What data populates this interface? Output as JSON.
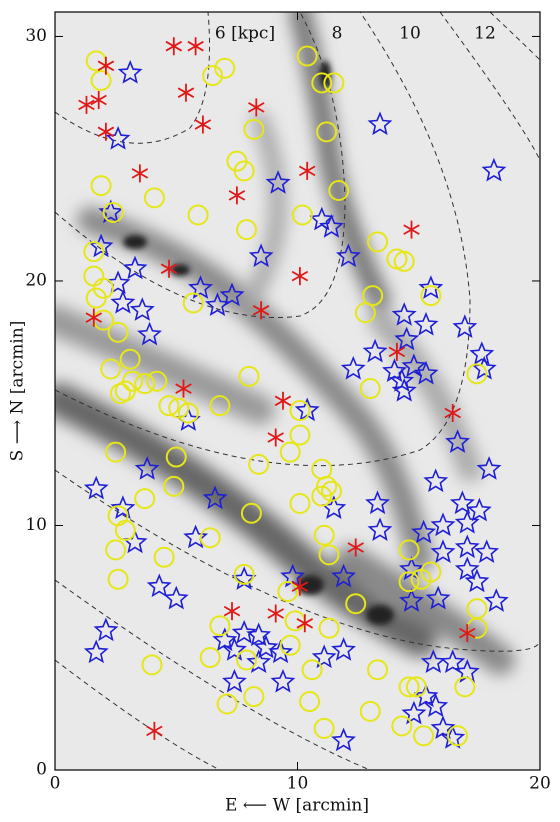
{
  "chart_data": {
    "type": "scatter",
    "xlabel": "E ⟵ W [arcmin]",
    "ylabel": "S ⟶ N [arcmin]",
    "annotations": [
      "6 [kpc]",
      "8",
      "10",
      "12"
    ],
    "xlim": [
      0,
      20
    ],
    "ylim": [
      0,
      31
    ],
    "xticks": [
      0,
      10,
      20
    ],
    "yticks": [
      0,
      10,
      20,
      30
    ],
    "series": [
      {
        "marker": "star",
        "color": "#1f1fd6",
        "x": [
          3.1,
          2.6,
          13.4,
          9.2,
          18.1,
          2.3,
          11.0,
          11.4,
          1.9,
          8.5,
          12.1,
          3.3,
          2.6,
          6.0,
          7.3,
          6.7,
          2.8,
          3.6,
          3.9,
          15.5,
          14.4,
          15.3,
          16.9,
          14.5,
          17.6,
          13.2,
          12.3,
          14.0,
          14.8,
          15.3,
          14.3,
          14.4,
          17.7,
          10.4,
          5.5,
          16.6,
          3.8,
          1.7,
          6.6,
          13.3,
          15.7,
          17.9,
          16.8,
          17.5,
          16.0,
          17.0,
          15.2,
          13.4,
          2.8,
          3.3,
          5.8,
          11.5,
          16.0,
          17.0,
          17.8,
          17.0,
          14.7,
          17.4,
          11.9,
          7.8,
          9.8,
          4.3,
          5.0,
          14.7,
          15.8,
          18.2,
          2.1,
          1.7,
          7.8,
          8.4,
          7.0,
          8.7,
          7.4,
          9.3,
          8.4,
          11.1,
          11.9,
          15.6,
          16.4,
          17.0,
          7.4,
          9.4,
          15.3,
          15.7,
          14.8,
          16.0,
          11.9,
          16.4
        ],
        "y": [
          28.5,
          25.8,
          26.4,
          24.0,
          24.5,
          22.8,
          22.5,
          22.2,
          21.4,
          21.0,
          21.0,
          20.5,
          19.9,
          19.7,
          19.4,
          19.0,
          19.1,
          18.8,
          17.8,
          19.7,
          18.6,
          18.2,
          18.1,
          17.6,
          17.0,
          17.1,
          16.4,
          16.3,
          16.5,
          16.2,
          15.9,
          15.5,
          16.4,
          14.7,
          14.3,
          13.4,
          12.3,
          11.5,
          11.1,
          10.9,
          11.8,
          12.3,
          10.9,
          10.6,
          10.0,
          10.1,
          9.7,
          9.8,
          10.7,
          9.3,
          9.5,
          10.7,
          8.9,
          9.1,
          8.9,
          8.2,
          8.2,
          7.7,
          7.9,
          7.8,
          7.9,
          7.5,
          7.0,
          6.9,
          7.0,
          6.9,
          5.7,
          4.8,
          5.6,
          5.5,
          5.3,
          5.0,
          4.9,
          4.8,
          4.4,
          4.6,
          4.9,
          4.4,
          4.4,
          4.0,
          3.6,
          3.6,
          3.0,
          2.6,
          2.3,
          1.7,
          1.2,
          1.3
        ]
      },
      {
        "marker": "circle",
        "color": "#e6e619",
        "x": [
          1.7,
          1.9,
          6.5,
          7.0,
          10.4,
          11.0,
          11.5,
          11.2,
          8.2,
          7.5,
          7.8,
          1.9,
          4.1,
          2.4,
          5.9,
          10.2,
          11.7,
          7.9,
          13.3,
          14.1,
          14.4,
          1.6,
          1.6,
          2.0,
          1.7,
          2.0,
          2.6,
          5.7,
          13.1,
          12.8,
          15.5,
          3.1,
          2.3,
          3.2,
          2.9,
          3.7,
          2.7,
          4.2,
          4.7,
          5.1,
          5.5,
          6.8,
          8.0,
          13.0,
          17.4,
          10.1,
          10.1,
          9.7,
          2.5,
          5.0,
          8.4,
          11.0,
          11.2,
          11.4,
          11.0,
          10.1,
          4.9,
          3.7,
          8.1,
          2.6,
          2.9,
          11.1,
          6.4,
          2.5,
          4.5,
          11.3,
          14.6,
          2.6,
          7.8,
          9.6,
          14.6,
          15.1,
          15.5,
          12.4,
          17.4,
          9.9,
          11.3,
          17.4,
          6.8,
          9.7,
          6.4,
          7.9,
          10.6,
          13.3,
          4.0,
          8.2,
          7.1,
          10.5,
          14.6,
          14.9,
          16.9,
          11.1,
          13.0,
          14.3,
          15.2,
          16.6
        ],
        "y": [
          29.0,
          28.2,
          28.4,
          28.7,
          29.2,
          28.1,
          28.1,
          26.1,
          26.2,
          24.9,
          24.5,
          23.9,
          23.4,
          22.8,
          22.7,
          22.7,
          23.7,
          22.1,
          21.6,
          20.9,
          20.8,
          21.2,
          20.2,
          19.7,
          19.3,
          18.4,
          17.9,
          19.1,
          19.4,
          18.7,
          19.4,
          16.8,
          16.4,
          15.9,
          15.5,
          15.8,
          15.4,
          15.9,
          14.9,
          14.8,
          14.6,
          14.9,
          16.1,
          15.6,
          16.2,
          14.7,
          13.7,
          13.0,
          13.0,
          12.8,
          12.5,
          12.3,
          11.6,
          11.4,
          11.2,
          10.9,
          11.6,
          11.1,
          10.5,
          10.4,
          9.8,
          9.6,
          9.5,
          9.0,
          8.7,
          8.8,
          9.0,
          7.8,
          8.0,
          7.3,
          7.7,
          7.8,
          8.1,
          6.8,
          6.6,
          6.1,
          5.8,
          5.8,
          5.9,
          5.1,
          4.6,
          4.5,
          4.1,
          4.1,
          4.3,
          3.0,
          2.7,
          2.8,
          3.4,
          3.4,
          3.4,
          1.7,
          2.4,
          1.8,
          1.4,
          1.4
        ]
      },
      {
        "marker": "asterisk",
        "color": "#e01818",
        "x": [
          4.9,
          5.8,
          2.1,
          1.3,
          1.8,
          5.4,
          2.1,
          8.3,
          6.1,
          3.5,
          7.5,
          10.4,
          14.7,
          4.7,
          10.1,
          8.5,
          1.6,
          5.3,
          9.4,
          9.1,
          14.1,
          16.4,
          12.4,
          10.1,
          7.3,
          9.1,
          10.3,
          17.0,
          4.1
        ],
        "y": [
          29.6,
          29.6,
          28.8,
          27.2,
          27.4,
          27.7,
          26.1,
          27.1,
          26.4,
          24.4,
          23.5,
          24.5,
          22.1,
          20.5,
          20.2,
          18.8,
          18.5,
          15.6,
          15.1,
          13.6,
          17.1,
          14.6,
          9.1,
          7.5,
          6.5,
          6.4,
          6.0,
          5.6,
          1.6
        ]
      }
    ]
  }
}
